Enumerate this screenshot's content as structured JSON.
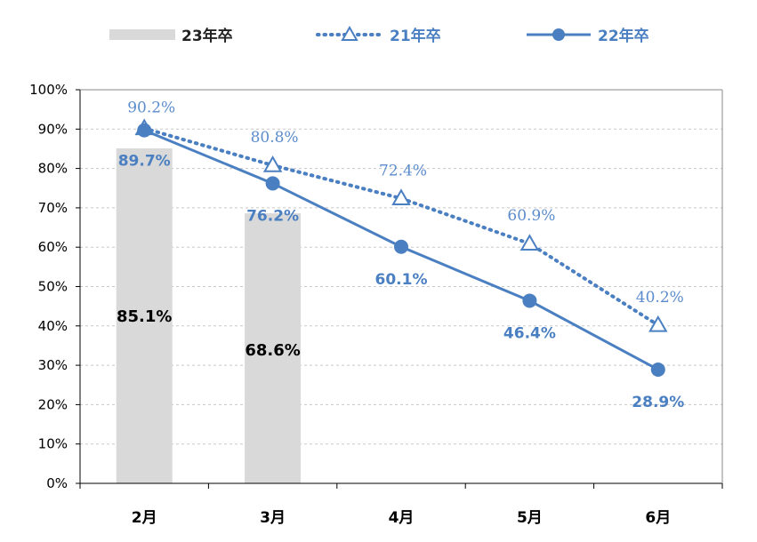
{
  "colors": {
    "bar": "#d9d9d9",
    "line": "#4a7fc1",
    "grid": "#c8c8c8",
    "axis": "#000000"
  },
  "legend": [
    {
      "label": "23年卒",
      "kind": "bar"
    },
    {
      "label": "21年卒",
      "kind": "dotted-triangle"
    },
    {
      "label": "22年卒",
      "kind": "solid-circle"
    }
  ],
  "chart_data": {
    "type": "bar",
    "categories": [
      "2月",
      "3月",
      "4月",
      "5月",
      "6月"
    ],
    "ylim": [
      0,
      100
    ],
    "y_ticks": [
      "0%",
      "10%",
      "20%",
      "30%",
      "40%",
      "50%",
      "60%",
      "70%",
      "80%",
      "90%",
      "100%"
    ],
    "grid": true,
    "legend_position": "top",
    "series": [
      {
        "name": "23年卒",
        "type": "bar",
        "values": [
          85.1,
          68.6,
          null,
          null,
          null
        ],
        "labels": [
          "85.1%",
          "68.6%",
          "",
          "",
          ""
        ]
      },
      {
        "name": "21年卒",
        "type": "line",
        "style": "dotted",
        "marker": "triangle",
        "values": [
          90.2,
          80.8,
          72.4,
          60.9,
          40.2
        ],
        "labels": [
          "90.2%",
          "80.8%",
          "72.4%",
          "60.9%",
          "40.2%"
        ]
      },
      {
        "name": "22年卒",
        "type": "line",
        "style": "solid",
        "marker": "circle",
        "values": [
          89.7,
          76.2,
          60.1,
          46.4,
          28.9
        ],
        "labels": [
          "89.7%",
          "76.2%",
          "60.1%",
          "46.4%",
          "28.9%"
        ]
      }
    ]
  }
}
